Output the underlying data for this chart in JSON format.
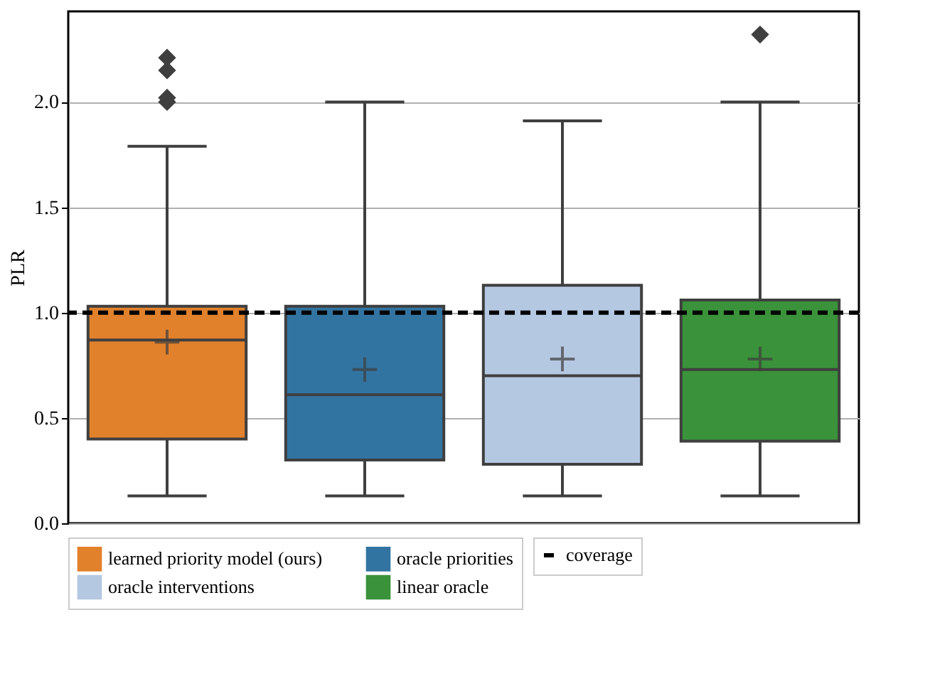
{
  "chart_data": {
    "type": "box",
    "ylabel": "PLR",
    "categories": [
      null,
      null,
      null,
      null
    ],
    "series": [
      {
        "name": "learned priority model (ours)",
        "color": "#e1812c",
        "boxes": [
          {
            "low": 0.13,
            "q1": 0.4,
            "median": 0.87,
            "q3": 1.03,
            "high": 1.79,
            "mean": 0.86,
            "outliers": [
              2.0,
              2.02,
              2.15,
              2.21
            ]
          },
          null,
          null,
          null
        ]
      },
      {
        "name": "oracle priorities",
        "color": "#3274a1",
        "boxes": [
          null,
          {
            "low": 0.13,
            "q1": 0.3,
            "median": 0.61,
            "q3": 1.03,
            "high": 2.0,
            "mean": 0.73
          },
          null,
          null
        ]
      },
      {
        "name": "oracle interventions",
        "color": "#b5c8e2",
        "boxes": [
          null,
          null,
          {
            "low": 0.13,
            "q1": 0.28,
            "median": 0.7,
            "q3": 1.13,
            "high": 1.91,
            "mean": 0.78
          },
          null
        ]
      },
      {
        "name": "linear oracle",
        "color": "#3a923a",
        "boxes": [
          null,
          null,
          null,
          {
            "low": 0.13,
            "q1": 0.39,
            "median": 0.73,
            "q3": 1.06,
            "high": 2.0,
            "mean": 0.78,
            "outliers": [
              2.32
            ]
          }
        ]
      }
    ],
    "ylim": [
      0,
      2.43
    ],
    "yticks": [
      {
        "value": 0,
        "label": "0.0"
      },
      {
        "value": 0.5,
        "label": "0.5"
      },
      {
        "value": 1.0,
        "label": "1.0"
      },
      {
        "value": 1.5,
        "label": "1.5"
      },
      {
        "value": 2.0,
        "label": "2.0"
      }
    ],
    "ref_lines": [
      {
        "axis": "y",
        "value": 1.0,
        "label": "coverage",
        "color": "#000000",
        "line_style": "dashed"
      }
    ],
    "grid": "y",
    "legend": "bottom"
  }
}
